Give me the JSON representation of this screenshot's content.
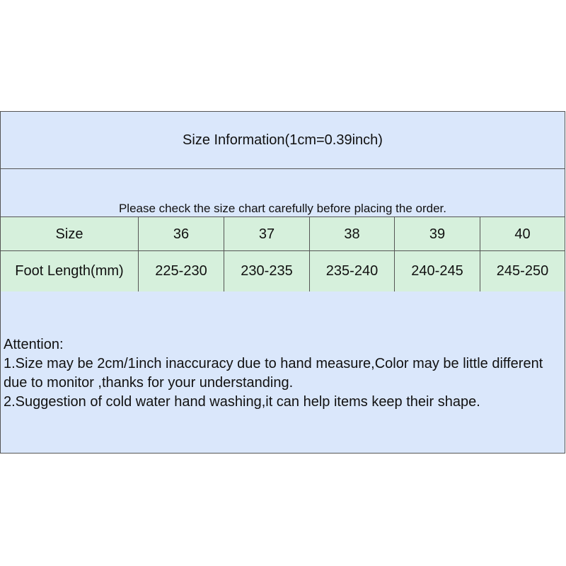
{
  "title": "Size Information(1cm=0.39inch)",
  "note": "Please check the size chart carefully before placing the order.",
  "table": {
    "header": [
      "Size",
      "36",
      "37",
      "38",
      "39",
      "40"
    ],
    "row": [
      "Foot Length(mm)",
      "225-230",
      "230-235",
      "235-240",
      "240-245",
      "245-250"
    ]
  },
  "attention": {
    "heading": "Attention:",
    "line1": "1.Size may be 2cm/1inch inaccuracy due to hand measure,Color may be little different due to monitor ,thanks for your understanding.",
    "line2": "2.Suggestion of cold water hand washing,it can help items keep their shape."
  },
  "colors": {
    "blue": "#dae7fb",
    "green": "#d6f0dc"
  }
}
